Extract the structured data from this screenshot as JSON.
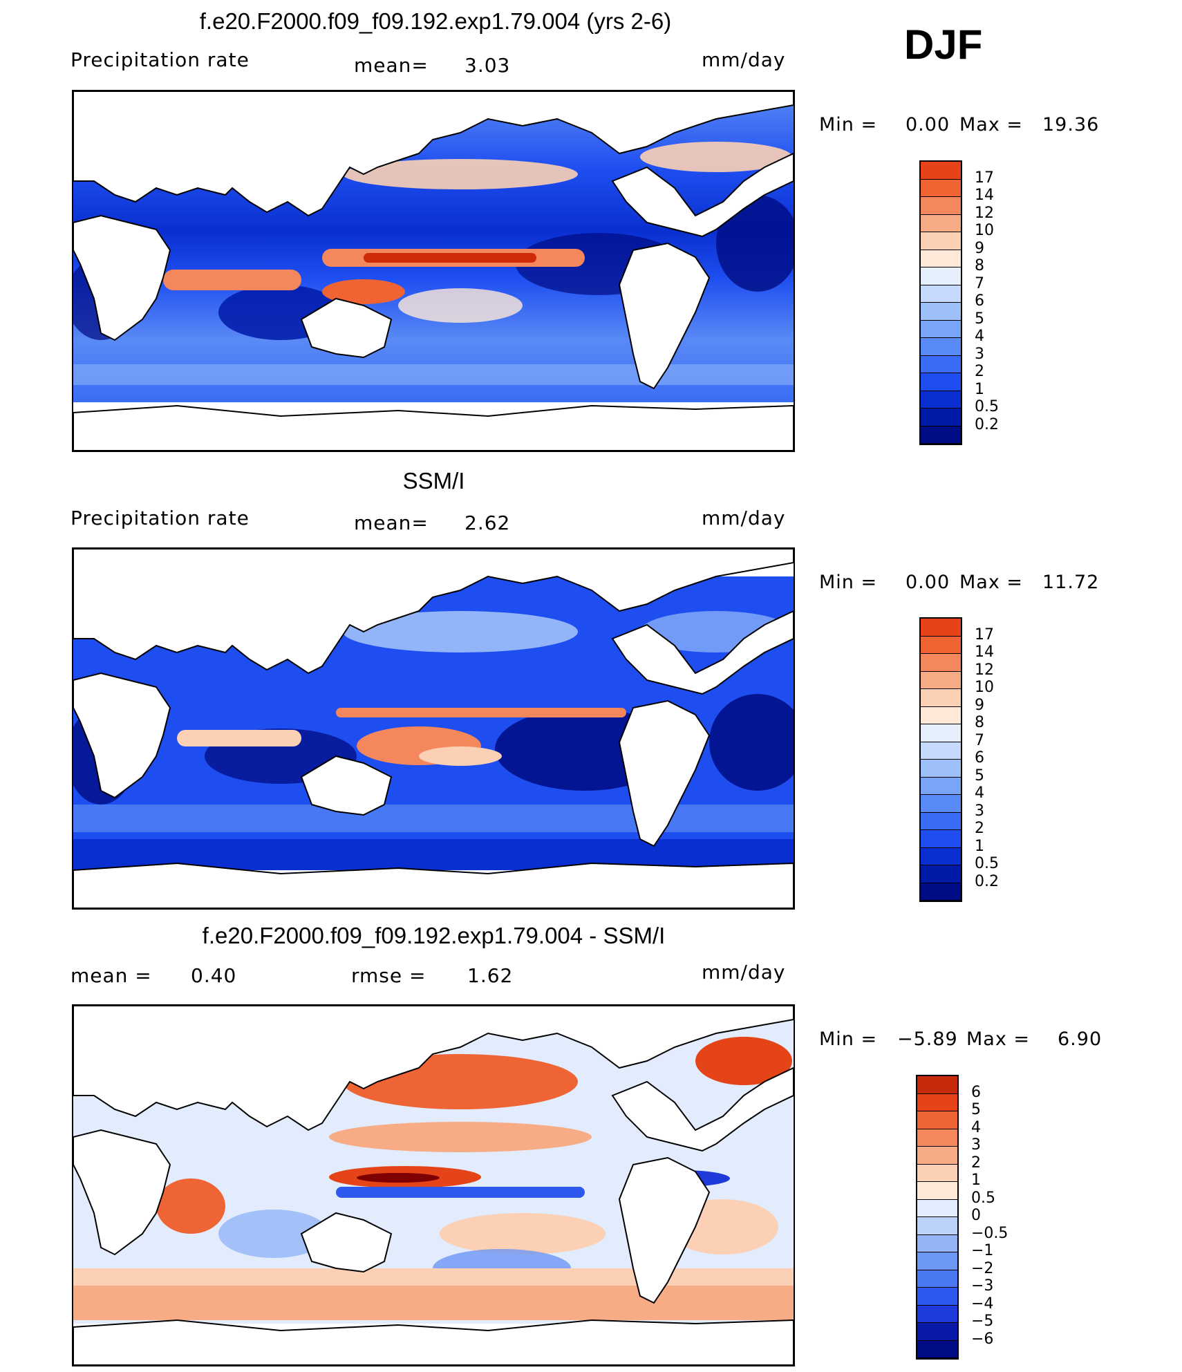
{
  "season": "DJF",
  "colors": {
    "precip_scale": [
      "#000c83",
      "#001aa8",
      "#0a2fd0",
      "#1e4ef0",
      "#3a6cf5",
      "#5a8af5",
      "#7aa4f7",
      "#9ec0fa",
      "#c5dafc",
      "#e6f0fd",
      "#ffe9d8",
      "#fcd0b4",
      "#f8ac86",
      "#f5875c",
      "#f06434",
      "#e64418",
      "#cf2a0a",
      "#a81205",
      "#7e0000"
    ],
    "diff_scale": [
      "#000c83",
      "#0a1aa8",
      "#1e3ad8",
      "#2f58ee",
      "#4a78f2",
      "#6d97f5",
      "#93b5f8",
      "#bcd2fb",
      "#e2ecfd",
      "#ffe9d8",
      "#fcd0b4",
      "#f7ac86",
      "#f4875c",
      "#ef6434",
      "#e44418",
      "#c52a0a",
      "#7e0000"
    ]
  },
  "panels": [
    {
      "title": "f.e20.F2000.f09_f09.192.exp1.79.004 (yrs 2-6)",
      "left_label": "Precipitation  rate",
      "mean_label": "mean=",
      "mean_value": "3.03",
      "units": "mm/day",
      "min_label": "Min  =",
      "min_value": "0.00",
      "max_label": "Max  =",
      "max_value": "19.36",
      "colorbar_labels": [
        "17",
        "14",
        "12",
        "10",
        "9",
        "8",
        "7",
        "6",
        "5",
        "4",
        "3",
        "2",
        "1",
        "0.5",
        "0.2"
      ]
    },
    {
      "title": "SSM/I",
      "left_label": "Precipitation  rate",
      "mean_label": "mean=",
      "mean_value": "2.62",
      "units": "mm/day",
      "min_label": "Min  =",
      "min_value": "0.00",
      "max_label": "Max  =",
      "max_value": "11.72",
      "colorbar_labels": [
        "17",
        "14",
        "12",
        "10",
        "9",
        "8",
        "7",
        "6",
        "5",
        "4",
        "3",
        "2",
        "1",
        "0.5",
        "0.2"
      ]
    },
    {
      "title": "f.e20.F2000.f09_f09.192.exp1.79.004 - SSM/I",
      "left_label": "mean  =",
      "left_value": "0.40",
      "rmse_label": "rmse  =",
      "rmse_value": "1.62",
      "units": "mm/day",
      "min_label": "Min  =",
      "min_value": "−5.89",
      "max_label": "Max  =",
      "max_value": "6.90",
      "colorbar_labels": [
        "6",
        "5",
        "4",
        "3",
        "2",
        "1",
        "0.5",
        "0",
        "−0.5",
        "−1",
        "−2",
        "−3",
        "−4",
        "−5",
        "−6"
      ]
    }
  ]
}
